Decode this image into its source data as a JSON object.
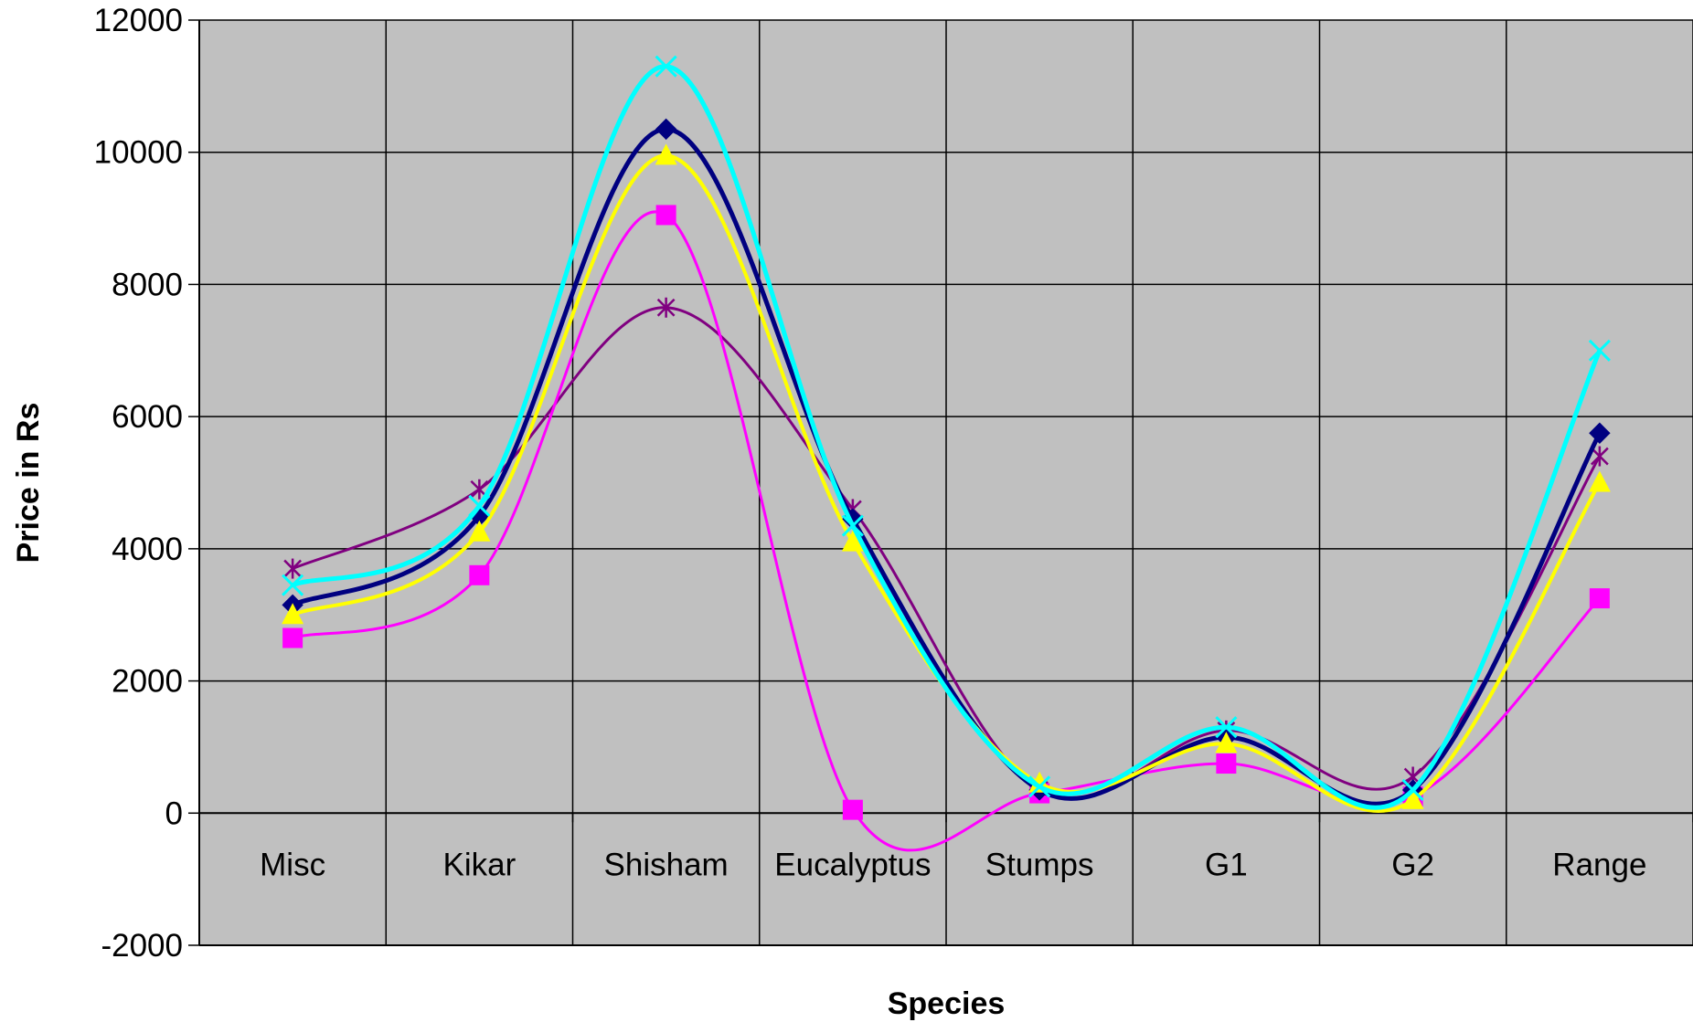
{
  "chart_data": {
    "type": "line",
    "xlabel": "Species",
    "ylabel": "Price in Rs",
    "ylim": [
      -2000,
      12000
    ],
    "yticks": [
      -2000,
      0,
      2000,
      4000,
      6000,
      8000,
      10000,
      12000
    ],
    "grid": true,
    "background": "#c0c0c0",
    "categories": [
      "Misc",
      "Kikar",
      "Shisham",
      "Eucalyptus",
      "Stumps",
      "G1",
      "G2",
      "Range"
    ],
    "series": [
      {
        "color": "#000080",
        "marker": "diamond",
        "values": [
          3150,
          4500,
          10350,
          4450,
          350,
          1150,
          350,
          5750
        ]
      },
      {
        "color": "#ff00ff",
        "marker": "square",
        "values": [
          2650,
          3600,
          9050,
          50,
          300,
          750,
          250,
          3250
        ]
      },
      {
        "color": "#ffff00",
        "marker": "triangle",
        "values": [
          3000,
          4250,
          9950,
          4100,
          450,
          1050,
          200,
          5000
        ]
      },
      {
        "color": "#00ffff",
        "marker": "x",
        "values": [
          3450,
          4650,
          11300,
          4350,
          400,
          1300,
          350,
          7000
        ]
      },
      {
        "color": "#800080",
        "marker": "star",
        "values": [
          3700,
          4900,
          7650,
          4600,
          350,
          1250,
          550,
          5400
        ]
      }
    ]
  }
}
